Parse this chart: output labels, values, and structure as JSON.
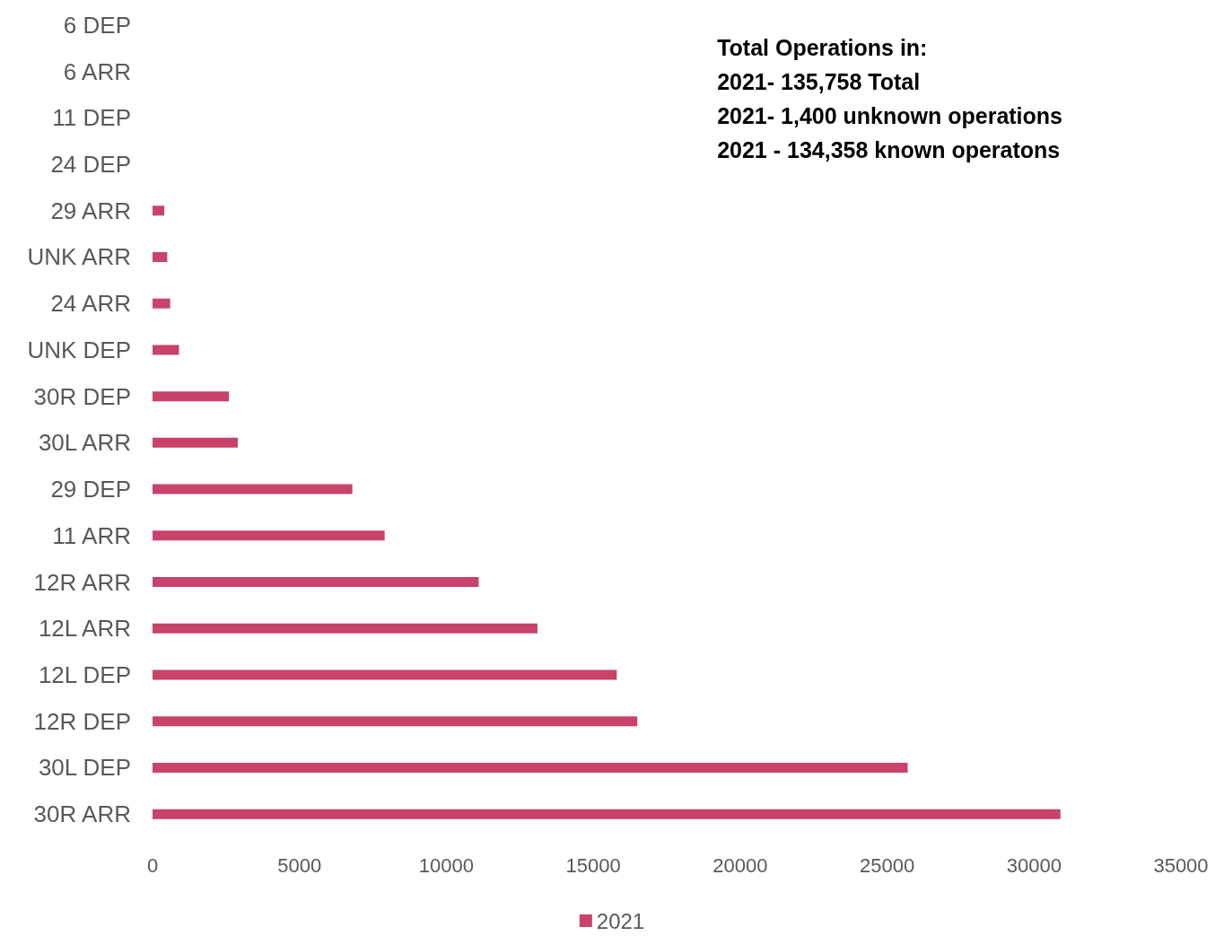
{
  "chart_data": {
    "type": "bar",
    "orientation": "horizontal",
    "categories": [
      "6 DEP",
      "6 ARR",
      "11 DEP",
      "24 DEP",
      "29 ARR",
      "UNK ARR",
      "24 ARR",
      "UNK DEP",
      "30R DEP",
      "30L ARR",
      "29 DEP",
      "11 ARR",
      "12R ARR",
      "12L ARR",
      "12L DEP",
      "12R DEP",
      "30L DEP",
      "30R ARR"
    ],
    "series": [
      {
        "name": "2021",
        "color": "#c8426a",
        "values": [
          0,
          0,
          0,
          0,
          400,
          500,
          600,
          900,
          2600,
          2900,
          6800,
          7900,
          11100,
          13100,
          15800,
          16500,
          25700,
          30900
        ]
      }
    ],
    "xlim": [
      0,
      35000
    ],
    "xticks": [
      0,
      5000,
      10000,
      15000,
      20000,
      25000,
      30000,
      35000
    ],
    "annotations": [
      "Total Operations in:",
      "2021- 135,758 Total",
      "2021- 1,400 unknown operations",
      "2021 - 134,358 known operatons"
    ],
    "grid": false,
    "legend": "bottom"
  }
}
